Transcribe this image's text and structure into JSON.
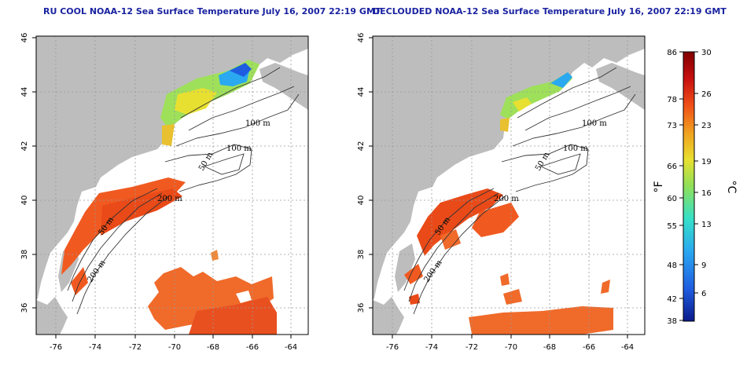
{
  "titles": {
    "left": "RU COOL NOAA-12 Sea Surface Temperature July 16, 2007 22:19 GMT",
    "right": "DECLOUDED NOAA-12 Sea Surface Temperature July 16, 2007 22:19 GMT"
  },
  "axes": {
    "lon_ticks": [
      "-76",
      "-74",
      "-72",
      "-70",
      "-68",
      "-66",
      "-64"
    ],
    "lat_ticks": [
      "46",
      "44",
      "42",
      "40",
      "38",
      "36"
    ]
  },
  "contours": {
    "labels": [
      "100 m",
      "100 m",
      "50 m",
      "200 m",
      "200 m",
      "50 m"
    ]
  },
  "colorbar": {
    "fahrenheit_ticks": [
      "86",
      "78",
      "73",
      "66",
      "60",
      "55",
      "48",
      "42",
      "38"
    ],
    "celsius_ticks": [
      "30",
      "26",
      "23",
      "19",
      "16",
      "13",
      "9",
      "6"
    ],
    "fahrenheit_unit": "°F",
    "celsius_unit": "°C",
    "gradient": [
      "#0a1a8a",
      "#1f5de0",
      "#2aa8f0",
      "#36e0c8",
      "#8ee05a",
      "#e8e030",
      "#f0a020",
      "#f05018",
      "#c81010",
      "#800000"
    ]
  },
  "colors": {
    "land": "#bdbdbd",
    "title": "#1a23a0",
    "grid": "#9a9a9a"
  }
}
